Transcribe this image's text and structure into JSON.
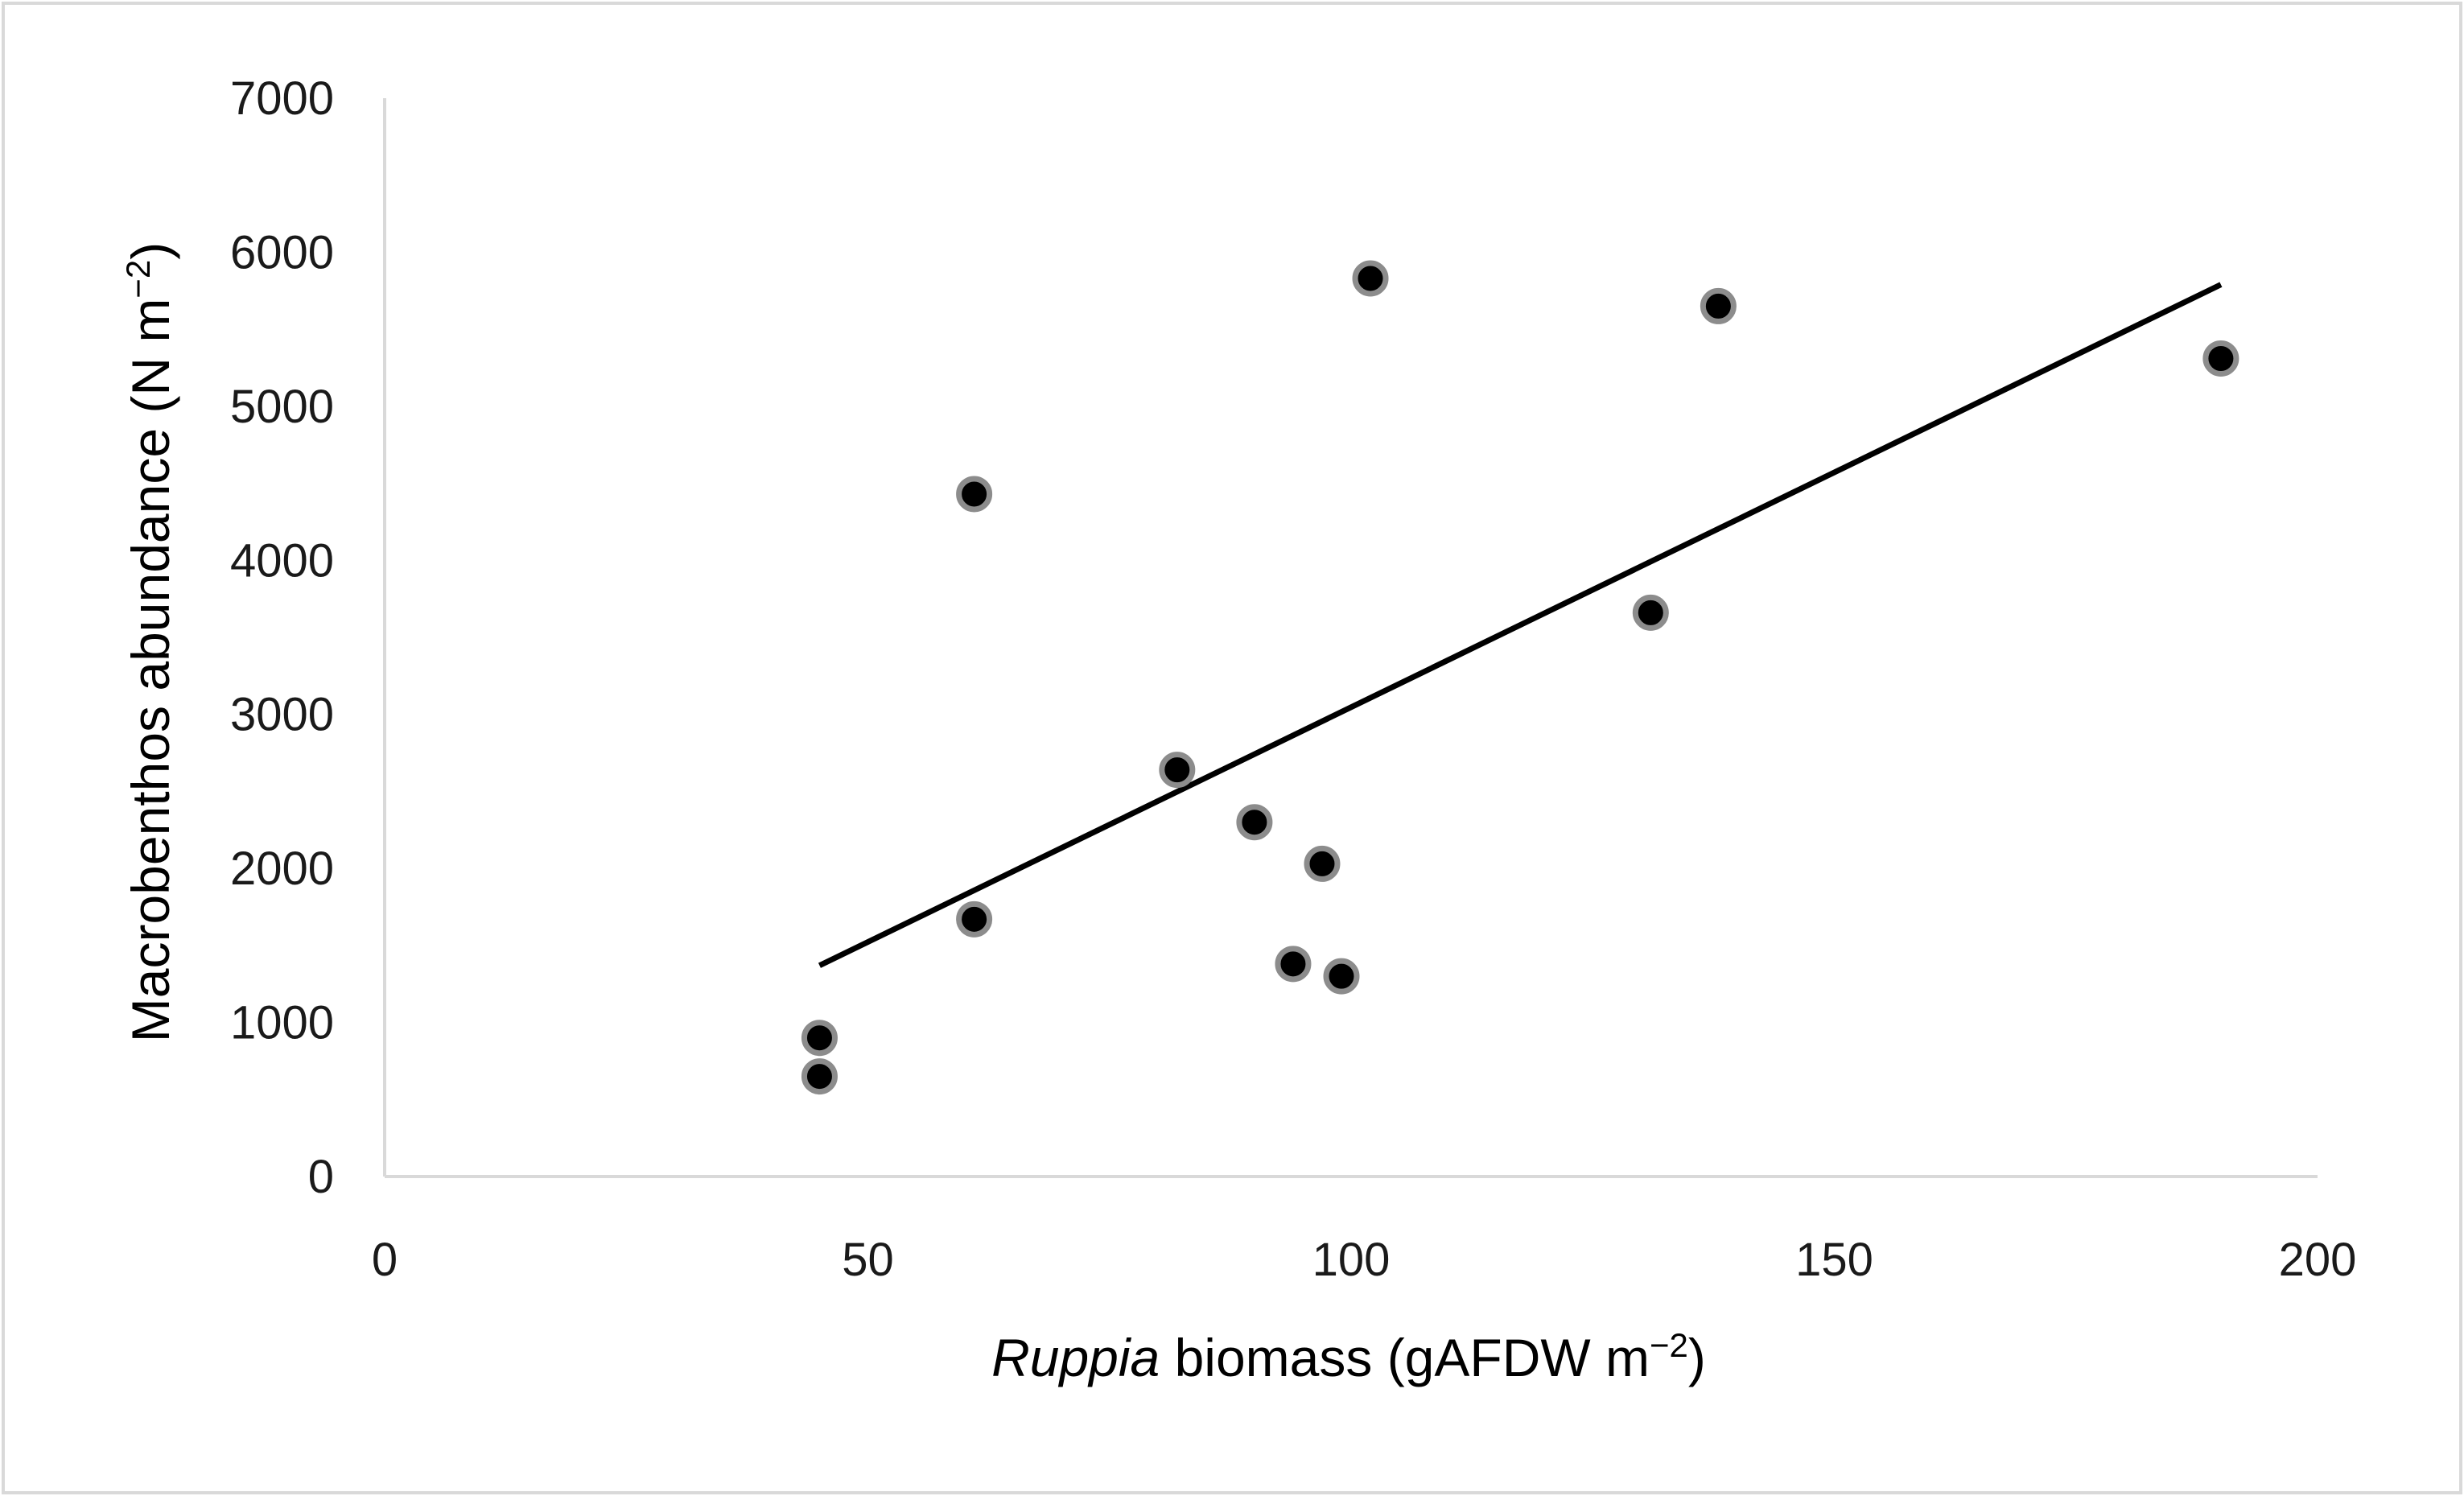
{
  "chart_data": {
    "type": "scatter",
    "title": "",
    "xlabel": {
      "italic_part": "Ruppia",
      "plain_part": " biomass (gAFDW m",
      "superscript": "−2",
      "suffix": ")"
    },
    "ylabel": {
      "plain_part": "Macrobenthos abundance (N m",
      "superscript": "−2",
      "suffix": ")"
    },
    "xlim": [
      0,
      200
    ],
    "ylim": [
      0,
      7000
    ],
    "x_ticks": [
      "0",
      "50",
      "100",
      "150",
      "200"
    ],
    "y_ticks": [
      "0",
      "1000",
      "2000",
      "3000",
      "4000",
      "5000",
      "6000",
      "7000"
    ],
    "grid": false,
    "legend": "none",
    "series": [
      {
        "points": [
          {
            "x": 45,
            "y": 650
          },
          {
            "x": 45,
            "y": 900
          },
          {
            "x": 61,
            "y": 4430
          },
          {
            "x": 61,
            "y": 1670
          },
          {
            "x": 82,
            "y": 2640
          },
          {
            "x": 90,
            "y": 2300
          },
          {
            "x": 94,
            "y": 1380
          },
          {
            "x": 97,
            "y": 2030
          },
          {
            "x": 99,
            "y": 1300
          },
          {
            "x": 102,
            "y": 5830
          },
          {
            "x": 131,
            "y": 3660
          },
          {
            "x": 138,
            "y": 5650
          },
          {
            "x": 190,
            "y": 5310
          }
        ]
      }
    ],
    "trendline": {
      "type": "linear",
      "x": [
        45,
        190
      ],
      "y": [
        1370,
        5790
      ]
    },
    "colors": {
      "marker_fill": "#000000",
      "marker_ring": "#8c8c8c",
      "trendline": "#000000",
      "axis": "#d9d9d9",
      "frame": "#d9d9d9"
    }
  }
}
